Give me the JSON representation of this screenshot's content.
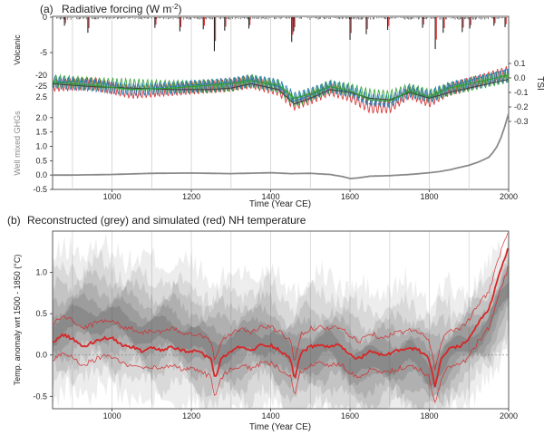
{
  "chart_data": [
    {
      "type": "line",
      "panel": "(a)",
      "title_main": "Radiative forcing (W m",
      "title_sup": "-2",
      "title_end": ")",
      "xlabel": "Time (Year CE)",
      "xlim": [
        850,
        2000
      ],
      "xticks": [
        1000,
        1200,
        1400,
        1600,
        1800,
        2000
      ],
      "volcanic": {
        "ylabel": "Volcanic",
        "ylim": [
          -5,
          0
        ],
        "yticks": [
          0,
          -5
        ],
        "eruptions": [
          [
            880,
            -1.2
          ],
          [
            939,
            -2.2
          ],
          [
            1108,
            -1.5
          ],
          [
            1171,
            -2.0
          ],
          [
            1230,
            -1.7
          ],
          [
            1258,
            -4.8
          ],
          [
            1284,
            -1.9
          ],
          [
            1345,
            -1.6
          ],
          [
            1453,
            -3.5
          ],
          [
            1458,
            -2.0
          ],
          [
            1600,
            -3.2
          ],
          [
            1641,
            -2.4
          ],
          [
            1695,
            -1.8
          ],
          [
            1783,
            -1.5
          ],
          [
            1815,
            -4.5
          ],
          [
            1835,
            -2.2
          ],
          [
            1883,
            -2.1
          ],
          [
            1902,
            -1.6
          ],
          [
            1963,
            -1.2
          ],
          [
            1991,
            -1.4
          ]
        ]
      },
      "tsi": {
        "ylabel": "TSI",
        "ylim": [
          -0.3,
          0.1
        ],
        "yticks": [
          0.1,
          0.0,
          -0.1,
          -0.2,
          -0.3
        ],
        "left_ticks": [
          "-20",
          "-25"
        ],
        "series": [
          {
            "color": "#d62728",
            "x": [
              850,
              950,
              1050,
              1150,
              1250,
              1300,
              1350,
              1420,
              1460,
              1500,
              1550,
              1600,
              1650,
              1700,
              1750,
              1800,
              1850,
              1900,
              1950,
              2000
            ],
            "y": [
              -0.05,
              -0.04,
              -0.1,
              -0.08,
              -0.06,
              -0.05,
              -0.03,
              -0.08,
              -0.18,
              -0.14,
              -0.08,
              -0.12,
              -0.2,
              -0.2,
              -0.1,
              -0.16,
              -0.08,
              -0.04,
              0.0,
              0.04
            ]
          },
          {
            "color": "#2ca02c",
            "x": [
              850,
              950,
              1050,
              1150,
              1250,
              1300,
              1350,
              1420,
              1460,
              1500,
              1550,
              1600,
              1650,
              1700,
              1750,
              1800,
              1850,
              1900,
              1950,
              2000
            ],
            "y": [
              -0.02,
              -0.04,
              -0.05,
              -0.06,
              -0.06,
              -0.05,
              -0.02,
              -0.06,
              -0.16,
              -0.12,
              -0.06,
              -0.08,
              -0.12,
              -0.13,
              -0.08,
              -0.12,
              -0.08,
              -0.05,
              -0.02,
              0.01
            ]
          },
          {
            "color": "#1f77b4",
            "x": [
              850,
              950,
              1050,
              1150,
              1250,
              1300,
              1350,
              1420,
              1460,
              1500,
              1550,
              1600,
              1650,
              1700,
              1750,
              1800,
              1850,
              1900,
              1950,
              2000
            ],
            "y": [
              -0.03,
              -0.05,
              -0.08,
              -0.07,
              -0.05,
              -0.04,
              -0.02,
              -0.05,
              -0.14,
              -0.11,
              -0.06,
              -0.09,
              -0.15,
              -0.16,
              -0.09,
              -0.13,
              -0.07,
              -0.04,
              -0.01,
              0.02
            ]
          }
        ]
      },
      "ghg": {
        "ylabel": "Well mixed GHGs",
        "ylim": [
          -0.5,
          2.5
        ],
        "yticks": [
          2.0,
          1.5,
          1.0,
          0.5,
          0.0,
          -0.5
        ],
        "extra_tick": "2.5",
        "color": "#8a8a8a",
        "x": [
          850,
          900,
          1000,
          1100,
          1200,
          1300,
          1400,
          1450,
          1500,
          1550,
          1580,
          1600,
          1620,
          1650,
          1700,
          1750,
          1800,
          1825,
          1850,
          1875,
          1900,
          1925,
          1950,
          1960,
          1970,
          1980,
          1990,
          2000
        ],
        "y": [
          0.0,
          0.0,
          0.02,
          0.06,
          0.07,
          0.05,
          0.08,
          0.05,
          0.06,
          0.02,
          -0.05,
          -0.12,
          -0.1,
          -0.04,
          -0.02,
          0.02,
          0.08,
          0.12,
          0.18,
          0.26,
          0.34,
          0.46,
          0.62,
          0.78,
          0.98,
          1.28,
          1.68,
          2.15
        ]
      }
    },
    {
      "type": "line",
      "panel": "(b)",
      "title": "Reconstructed (grey) and simulated (red) NH temperature",
      "xlabel": "Time (Year CE)",
      "ylabel": "Temp. anomaly wrt 1500 - 1850 (°C)",
      "xlim": [
        850,
        2000
      ],
      "ylim": [
        -0.65,
        1.5
      ],
      "xticks": [
        1000,
        1200,
        1400,
        1600,
        1800,
        2000
      ],
      "yticks": [
        1.0,
        0.5,
        0.0,
        -0.5
      ],
      "ytick_labels": [
        "1.0",
        "0.5",
        "0.0",
        "-0.5"
      ],
      "series": [
        {
          "name": "reconstructed",
          "color": "#555555",
          "x": [
            850,
            900,
            950,
            1000,
            1050,
            1100,
            1150,
            1200,
            1250,
            1300,
            1350,
            1400,
            1450,
            1500,
            1550,
            1600,
            1650,
            1700,
            1750,
            1800,
            1850,
            1900,
            1950,
            2000
          ],
          "y": [
            0.3,
            0.4,
            0.45,
            0.4,
            0.35,
            0.25,
            0.3,
            0.2,
            0.05,
            0.1,
            0.15,
            0.2,
            -0.05,
            0.05,
            0.1,
            -0.05,
            -0.1,
            -0.05,
            0.0,
            -0.2,
            0.0,
            0.15,
            0.35,
            0.8
          ]
        },
        {
          "name": "simulated",
          "color": "#d62728",
          "x": [
            850,
            875,
            900,
            925,
            950,
            975,
            1000,
            1025,
            1050,
            1075,
            1100,
            1125,
            1150,
            1175,
            1200,
            1225,
            1250,
            1260,
            1275,
            1300,
            1325,
            1350,
            1375,
            1400,
            1425,
            1450,
            1460,
            1475,
            1500,
            1525,
            1550,
            1575,
            1600,
            1625,
            1650,
            1675,
            1700,
            1725,
            1750,
            1775,
            1800,
            1815,
            1830,
            1850,
            1875,
            1900,
            1925,
            1950,
            1975,
            2000
          ],
          "y": [
            0.15,
            0.25,
            0.2,
            0.1,
            0.15,
            0.2,
            0.2,
            0.12,
            0.1,
            0.05,
            0.08,
            0.05,
            0.1,
            0.05,
            0.05,
            0.02,
            -0.05,
            -0.3,
            -0.05,
            0.05,
            0.1,
            0.05,
            0.12,
            0.12,
            0.05,
            -0.05,
            -0.3,
            0.02,
            0.1,
            0.12,
            0.1,
            0.12,
            0.0,
            -0.05,
            0.05,
            0.0,
            0.02,
            0.06,
            0.08,
            0.05,
            -0.05,
            -0.4,
            -0.05,
            0.08,
            0.1,
            0.2,
            0.4,
            0.55,
            0.95,
            1.3
          ]
        }
      ]
    }
  ]
}
